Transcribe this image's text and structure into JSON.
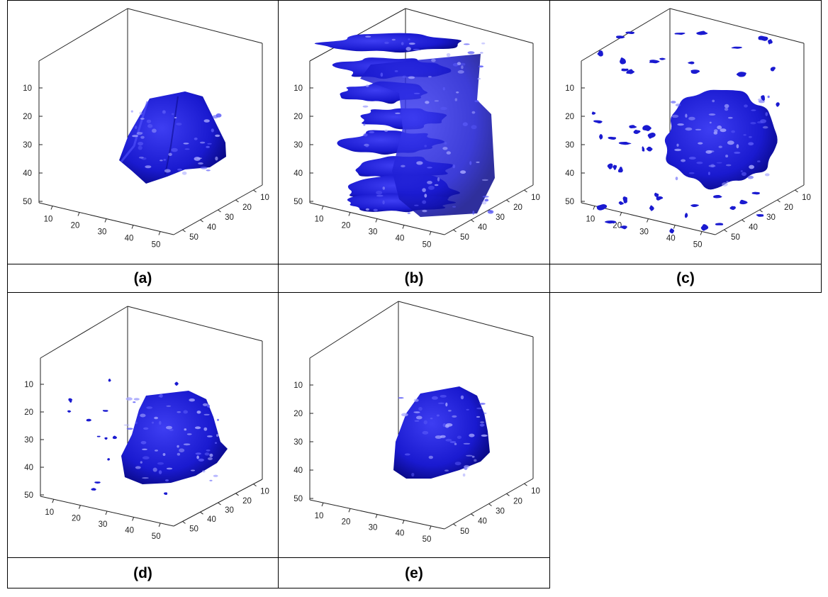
{
  "figure": {
    "panels": [
      {
        "caption": "(a)",
        "variant": "smooth-solid"
      },
      {
        "caption": "(b)",
        "variant": "noisy-extended"
      },
      {
        "caption": "(c)",
        "variant": "solid-with-many-fragments"
      },
      {
        "caption": "(d)",
        "variant": "solid-with-few-fragments"
      },
      {
        "caption": "(e)",
        "variant": "solid-clean"
      }
    ]
  },
  "chart_data": [
    {
      "type": "surface3d",
      "caption": "(a)",
      "x_ticks": [
        "10",
        "20",
        "30",
        "40",
        "50"
      ],
      "y_ticks": [
        "10",
        "20",
        "30",
        "40",
        "50"
      ],
      "z_ticks": [
        "10",
        "20",
        "30",
        "40",
        "50"
      ],
      "xlim": [
        0,
        50
      ],
      "ylim": [
        0,
        50
      ],
      "zlim": [
        0,
        50
      ],
      "surface_color": "#1a1ad0"
    },
    {
      "type": "surface3d",
      "caption": "(b)",
      "x_ticks": [
        "10",
        "20",
        "30",
        "40",
        "50"
      ],
      "y_ticks": [
        "10",
        "20",
        "30",
        "40",
        "50"
      ],
      "z_ticks": [
        "10",
        "20",
        "30",
        "40",
        "50"
      ],
      "xlim": [
        0,
        50
      ],
      "ylim": [
        0,
        50
      ],
      "zlim": [
        0,
        50
      ],
      "surface_color": "#1a1ad0"
    },
    {
      "type": "surface3d",
      "caption": "(c)",
      "x_ticks": [
        "10",
        "20",
        "30",
        "40",
        "50"
      ],
      "y_ticks": [
        "10",
        "20",
        "30",
        "40",
        "50"
      ],
      "z_ticks": [
        "10",
        "20",
        "30",
        "40",
        "50"
      ],
      "xlim": [
        0,
        50
      ],
      "ylim": [
        0,
        50
      ],
      "zlim": [
        0,
        50
      ],
      "surface_color": "#1a1ad0"
    },
    {
      "type": "surface3d",
      "caption": "(d)",
      "x_ticks": [
        "10",
        "20",
        "30",
        "40",
        "50"
      ],
      "y_ticks": [
        "10",
        "20",
        "30",
        "40",
        "50"
      ],
      "z_ticks": [
        "10",
        "20",
        "30",
        "40",
        "50"
      ],
      "xlim": [
        0,
        50
      ],
      "ylim": [
        0,
        50
      ],
      "zlim": [
        0,
        50
      ],
      "surface_color": "#1a1ad0"
    },
    {
      "type": "surface3d",
      "caption": "(e)",
      "x_ticks": [
        "10",
        "20",
        "30",
        "40",
        "50"
      ],
      "y_ticks": [
        "10",
        "20",
        "30",
        "40",
        "50"
      ],
      "z_ticks": [
        "10",
        "20",
        "30",
        "40",
        "50"
      ],
      "xlim": [
        0,
        50
      ],
      "ylim": [
        0,
        50
      ],
      "zlim": [
        0,
        50
      ],
      "surface_color": "#1a1ad0"
    }
  ]
}
